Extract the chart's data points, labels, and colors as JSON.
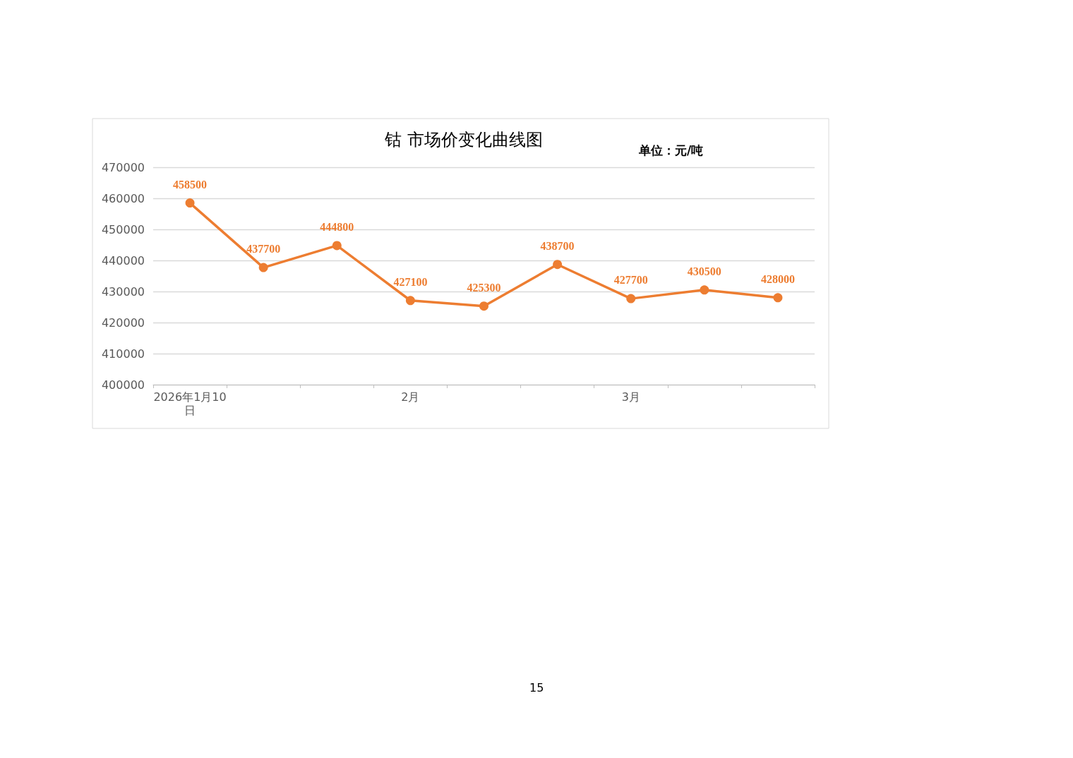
{
  "chart_data": {
    "type": "line",
    "title": "钴 市场价变化曲线图",
    "categories": [
      "2026年1月10日",
      null,
      null,
      "2月",
      null,
      null,
      "3月",
      null,
      null
    ],
    "series": [
      {
        "color": "#ed7d31",
        "values": [
          458500,
          437700,
          444800,
          427100,
          425300,
          438700,
          427700,
          430500,
          428000
        ]
      }
    ],
    "ylim": [
      400000,
      470000
    ],
    "yticks": [
      400000,
      410000,
      420000,
      430000,
      440000,
      450000,
      460000,
      470000
    ],
    "grid": "y",
    "legend": false,
    "marker": "circle",
    "line_style": "solid",
    "data_labels": true,
    "annotations": [
      "单位：元/吨",
      "15"
    ]
  }
}
